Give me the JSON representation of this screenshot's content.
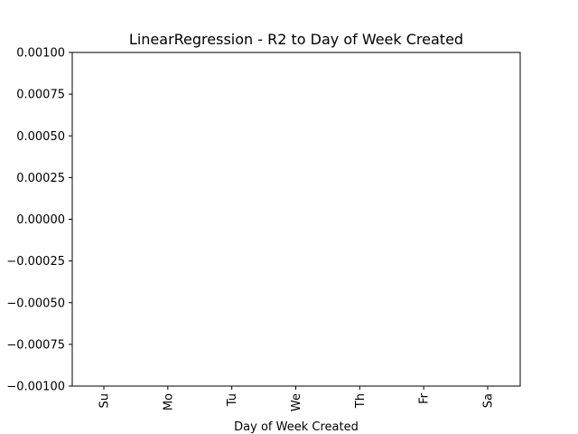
{
  "chart_data": {
    "type": "bar",
    "title": "LinearRegression - R2 to Day of Week Created",
    "xlabel": "Day of Week Created",
    "ylabel": "",
    "categories": [
      "Su",
      "Mo",
      "Tu",
      "We",
      "Th",
      "Fr",
      "Sa"
    ],
    "values": [
      0,
      0,
      0,
      0,
      0,
      0,
      0
    ],
    "ylim": [
      -0.001,
      0.001
    ],
    "yticks": [
      0.001,
      0.00075,
      0.0005,
      0.00025,
      0.0,
      -0.00025,
      -0.0005,
      -0.00075,
      -0.001
    ],
    "ytick_labels": [
      "0.00100",
      "0.00075",
      "0.00050",
      "0.00025",
      "0.00000",
      "−0.00025",
      "−0.00050",
      "−0.00075",
      "−0.00100"
    ],
    "grid": false,
    "legend": "none",
    "colors": {
      "axis": "#000000",
      "bar": "#1f77b4"
    }
  }
}
